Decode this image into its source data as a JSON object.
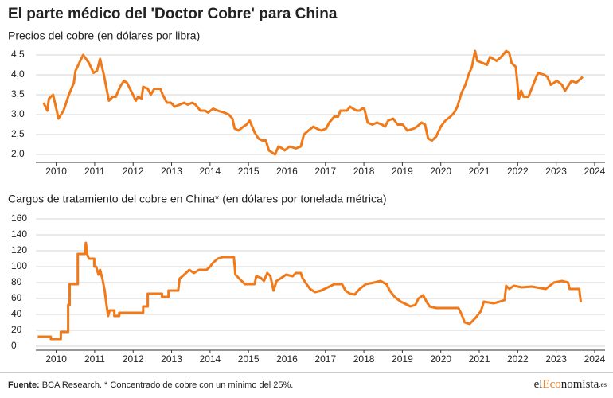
{
  "title": "El parte médico del 'Doctor Cobre' para China",
  "chart_data": [
    {
      "type": "line",
      "title": "Precios del cobre (en dólares por libra)",
      "color": "#f07a1a",
      "grid": true,
      "x": [
        2009.67,
        2009.77,
        2009.81,
        2009.92,
        2010.06,
        2010.19,
        2010.33,
        2010.46,
        2010.5,
        2010.7,
        2010.85,
        2010.97,
        2011.06,
        2011.14,
        2011.24,
        2011.37,
        2011.47,
        2011.55,
        2011.66,
        2011.76,
        2011.84,
        2011.97,
        2012.07,
        2012.13,
        2012.22,
        2012.26,
        2012.38,
        2012.46,
        2012.55,
        2012.71,
        2012.77,
        2012.88,
        2012.98,
        2013.08,
        2013.21,
        2013.33,
        2013.42,
        2013.54,
        2013.62,
        2013.75,
        2013.87,
        2013.95,
        2014.08,
        2014.2,
        2014.37,
        2014.49,
        2014.58,
        2014.64,
        2014.74,
        2014.87,
        2014.95,
        2015.03,
        2015.16,
        2015.26,
        2015.36,
        2015.45,
        2015.53,
        2015.61,
        2015.69,
        2015.78,
        2015.88,
        2015.94,
        2016.07,
        2016.23,
        2016.36,
        2016.44,
        2016.56,
        2016.69,
        2016.77,
        2016.89,
        2017.02,
        2017.1,
        2017.23,
        2017.33,
        2017.39,
        2017.56,
        2017.64,
        2017.72,
        2017.81,
        2017.89,
        2017.95,
        2018.01,
        2018.1,
        2018.22,
        2018.34,
        2018.47,
        2018.55,
        2018.63,
        2018.76,
        2018.88,
        2019.01,
        2019.13,
        2019.3,
        2019.38,
        2019.5,
        2019.59,
        2019.67,
        2019.77,
        2019.88,
        2020.0,
        2020.12,
        2020.25,
        2020.35,
        2020.43,
        2020.54,
        2020.64,
        2020.72,
        2020.81,
        2020.89,
        2020.95,
        2021.08,
        2021.2,
        2021.28,
        2021.45,
        2021.57,
        2021.7,
        2021.78,
        2021.84,
        2021.95,
        2022.03,
        2022.09,
        2022.15,
        2022.28,
        2022.4,
        2022.53,
        2022.69,
        2022.77,
        2022.86,
        2023.02,
        2023.15,
        2023.23,
        2023.33,
        2023.4,
        2023.52,
        2023.69
      ],
      "values": [
        3.3,
        3.1,
        3.4,
        3.5,
        2.9,
        3.1,
        3.5,
        3.8,
        4.1,
        4.5,
        4.3,
        4.05,
        4.1,
        4.4,
        4.0,
        3.35,
        3.45,
        3.45,
        3.7,
        3.85,
        3.8,
        3.55,
        3.35,
        3.45,
        3.4,
        3.7,
        3.65,
        3.5,
        3.65,
        3.65,
        3.5,
        3.3,
        3.3,
        3.2,
        3.25,
        3.3,
        3.25,
        3.3,
        3.25,
        3.1,
        3.1,
        3.05,
        3.15,
        3.1,
        3.05,
        3.0,
        2.9,
        2.65,
        2.6,
        2.7,
        2.75,
        2.85,
        2.55,
        2.4,
        2.35,
        2.35,
        2.1,
        2.05,
        2.0,
        2.2,
        2.15,
        2.1,
        2.2,
        2.15,
        2.2,
        2.5,
        2.6,
        2.7,
        2.65,
        2.6,
        2.65,
        2.8,
        2.95,
        2.95,
        3.1,
        3.1,
        3.2,
        3.15,
        3.1,
        3.1,
        3.15,
        3.15,
        2.8,
        2.75,
        2.8,
        2.75,
        2.7,
        2.85,
        2.9,
        2.75,
        2.75,
        2.6,
        2.65,
        2.7,
        2.8,
        2.75,
        2.4,
        2.35,
        2.45,
        2.7,
        2.85,
        2.95,
        3.05,
        3.2,
        3.55,
        3.75,
        4.0,
        4.2,
        4.6,
        4.35,
        4.3,
        4.25,
        4.45,
        4.35,
        4.45,
        4.6,
        4.55,
        4.3,
        4.2,
        3.4,
        3.6,
        3.45,
        3.45,
        3.75,
        4.05,
        4.0,
        3.95,
        3.75,
        3.85,
        3.75,
        3.6,
        3.75,
        3.85,
        3.8,
        3.95
      ],
      "xlim": [
        2009.47,
        2024.27
      ],
      "xticks": [
        2010,
        2011,
        2012,
        2013,
        2014,
        2015,
        2016,
        2017,
        2018,
        2019,
        2020,
        2021,
        2022,
        2023,
        2024
      ],
      "ylim": [
        1.8,
        4.7
      ],
      "yticks": [
        {
          "value": 2,
          "label": "2,0"
        },
        {
          "value": 2.5,
          "label": "2,5"
        },
        {
          "value": 3,
          "label": "3,0"
        },
        {
          "value": 3.5,
          "label": "3,5"
        },
        {
          "value": 4,
          "label": "4,0"
        },
        {
          "value": 4.5,
          "label": "4,5"
        }
      ]
    },
    {
      "type": "line",
      "title": "Cargos de tratamiento del cobre en China* (en dólares por tonelada métrica)",
      "color": "#f07a1a",
      "grid": true,
      "x": [
        2009.52,
        2009.86,
        2009.86,
        2010.12,
        2010.12,
        2010.31,
        2010.31,
        2010.35,
        2010.35,
        2010.56,
        2010.56,
        2010.75,
        2010.77,
        2010.81,
        2010.85,
        2010.99,
        2010.99,
        2011.04,
        2011.1,
        2011.14,
        2011.2,
        2011.26,
        2011.3,
        2011.35,
        2011.39,
        2011.51,
        2011.51,
        2011.64,
        2011.64,
        2012.26,
        2012.26,
        2012.38,
        2012.38,
        2012.75,
        2012.75,
        2012.92,
        2012.92,
        2013.17,
        2013.21,
        2013.33,
        2013.46,
        2013.58,
        2013.71,
        2013.91,
        2014.0,
        2014.08,
        2014.2,
        2014.33,
        2014.62,
        2014.66,
        2014.78,
        2014.91,
        2015.16,
        2015.2,
        2015.32,
        2015.4,
        2015.49,
        2015.57,
        2015.65,
        2015.73,
        2015.86,
        2015.98,
        2016.15,
        2016.23,
        2016.36,
        2016.4,
        2016.48,
        2016.6,
        2016.73,
        2016.89,
        2017.06,
        2017.23,
        2017.43,
        2017.52,
        2017.64,
        2017.76,
        2017.89,
        2018.05,
        2018.26,
        2018.43,
        2018.59,
        2018.67,
        2018.8,
        2018.96,
        2019.13,
        2019.21,
        2019.34,
        2019.42,
        2019.54,
        2019.63,
        2019.71,
        2019.88,
        2020.46,
        2020.54,
        2020.62,
        2020.75,
        2020.91,
        2021.04,
        2021.12,
        2021.37,
        2021.53,
        2021.66,
        2021.7,
        2021.78,
        2021.9,
        2022.11,
        2022.36,
        2022.73,
        2022.94,
        2023.15,
        2023.31,
        2023.35,
        2023.6,
        2023.64
      ],
      "values": [
        12,
        12,
        9,
        9,
        18,
        18,
        52,
        52,
        78,
        78,
        116,
        116,
        130,
        115,
        110,
        110,
        100,
        100,
        90,
        96,
        85,
        70,
        55,
        38,
        45,
        45,
        38,
        38,
        42,
        42,
        50,
        50,
        66,
        66,
        62,
        62,
        70,
        70,
        85,
        90,
        96,
        92,
        96,
        96,
        100,
        105,
        110,
        112,
        112,
        90,
        84,
        78,
        78,
        88,
        86,
        82,
        92,
        88,
        70,
        82,
        86,
        90,
        88,
        92,
        92,
        86,
        80,
        72,
        68,
        70,
        74,
        78,
        78,
        70,
        66,
        65,
        72,
        78,
        80,
        82,
        78,
        70,
        62,
        56,
        52,
        50,
        52,
        60,
        64,
        56,
        50,
        48,
        48,
        40,
        30,
        28,
        36,
        44,
        56,
        54,
        56,
        58,
        76,
        72,
        76,
        74,
        75,
        72,
        80,
        82,
        80,
        72,
        72,
        55
      ],
      "xlim": [
        2009.47,
        2024.27
      ],
      "xticks": [
        2010,
        2011,
        2012,
        2013,
        2014,
        2015,
        2016,
        2017,
        2018,
        2019,
        2020,
        2021,
        2022,
        2023,
        2024
      ],
      "ylim": [
        -5,
        160
      ],
      "yticks": [
        0,
        20,
        40,
        60,
        80,
        100,
        120,
        140,
        160
      ]
    }
  ],
  "footer": {
    "source_label": "Fuente:",
    "source": "BCA Research. * Concentrado de cobre con un mínimo del 25%.",
    "logo": [
      "el",
      "Eco",
      "nomista",
      ".es"
    ]
  }
}
